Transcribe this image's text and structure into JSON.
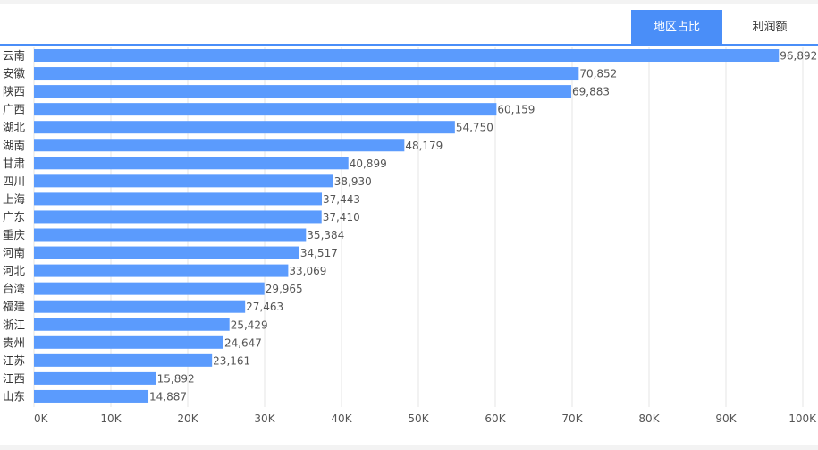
{
  "tabs": [
    {
      "label": "地区占比",
      "active": true
    },
    {
      "label": "利润额",
      "active": false
    }
  ],
  "colors": {
    "bar": "#5b9bfd",
    "accent": "#4a8ef8",
    "grid": "#e6e6e6",
    "text": "#555555"
  },
  "chart_data": {
    "type": "bar",
    "orientation": "horizontal",
    "categories": [
      "云南",
      "安徽",
      "陕西",
      "广西",
      "湖北",
      "湖南",
      "甘肃",
      "四川",
      "上海",
      "广东",
      "重庆",
      "河南",
      "河北",
      "台湾",
      "福建",
      "浙江",
      "贵州",
      "江苏",
      "江西",
      "山东"
    ],
    "values": [
      96892,
      70852,
      69883,
      60159,
      54750,
      48179,
      40899,
      38930,
      37443,
      37410,
      35384,
      34517,
      33069,
      29965,
      27463,
      25429,
      24647,
      23161,
      15892,
      14887
    ],
    "value_labels": [
      "96,892",
      "70,852",
      "69,883",
      "60,159",
      "54,750",
      "48,179",
      "40,899",
      "38,930",
      "37,443",
      "37,410",
      "35,384",
      "34,517",
      "33,069",
      "29,965",
      "27,463",
      "25,429",
      "24,647",
      "23,161",
      "15,892",
      "14,887"
    ],
    "x_ticks": [
      0,
      10000,
      20000,
      30000,
      40000,
      50000,
      60000,
      70000,
      80000,
      90000,
      100000
    ],
    "x_tick_labels": [
      "0K",
      "10K",
      "20K",
      "30K",
      "40K",
      "50K",
      "60K",
      "70K",
      "80K",
      "90K",
      "100K"
    ],
    "xlim": [
      0,
      100000
    ],
    "grid": true,
    "legend": "none"
  }
}
